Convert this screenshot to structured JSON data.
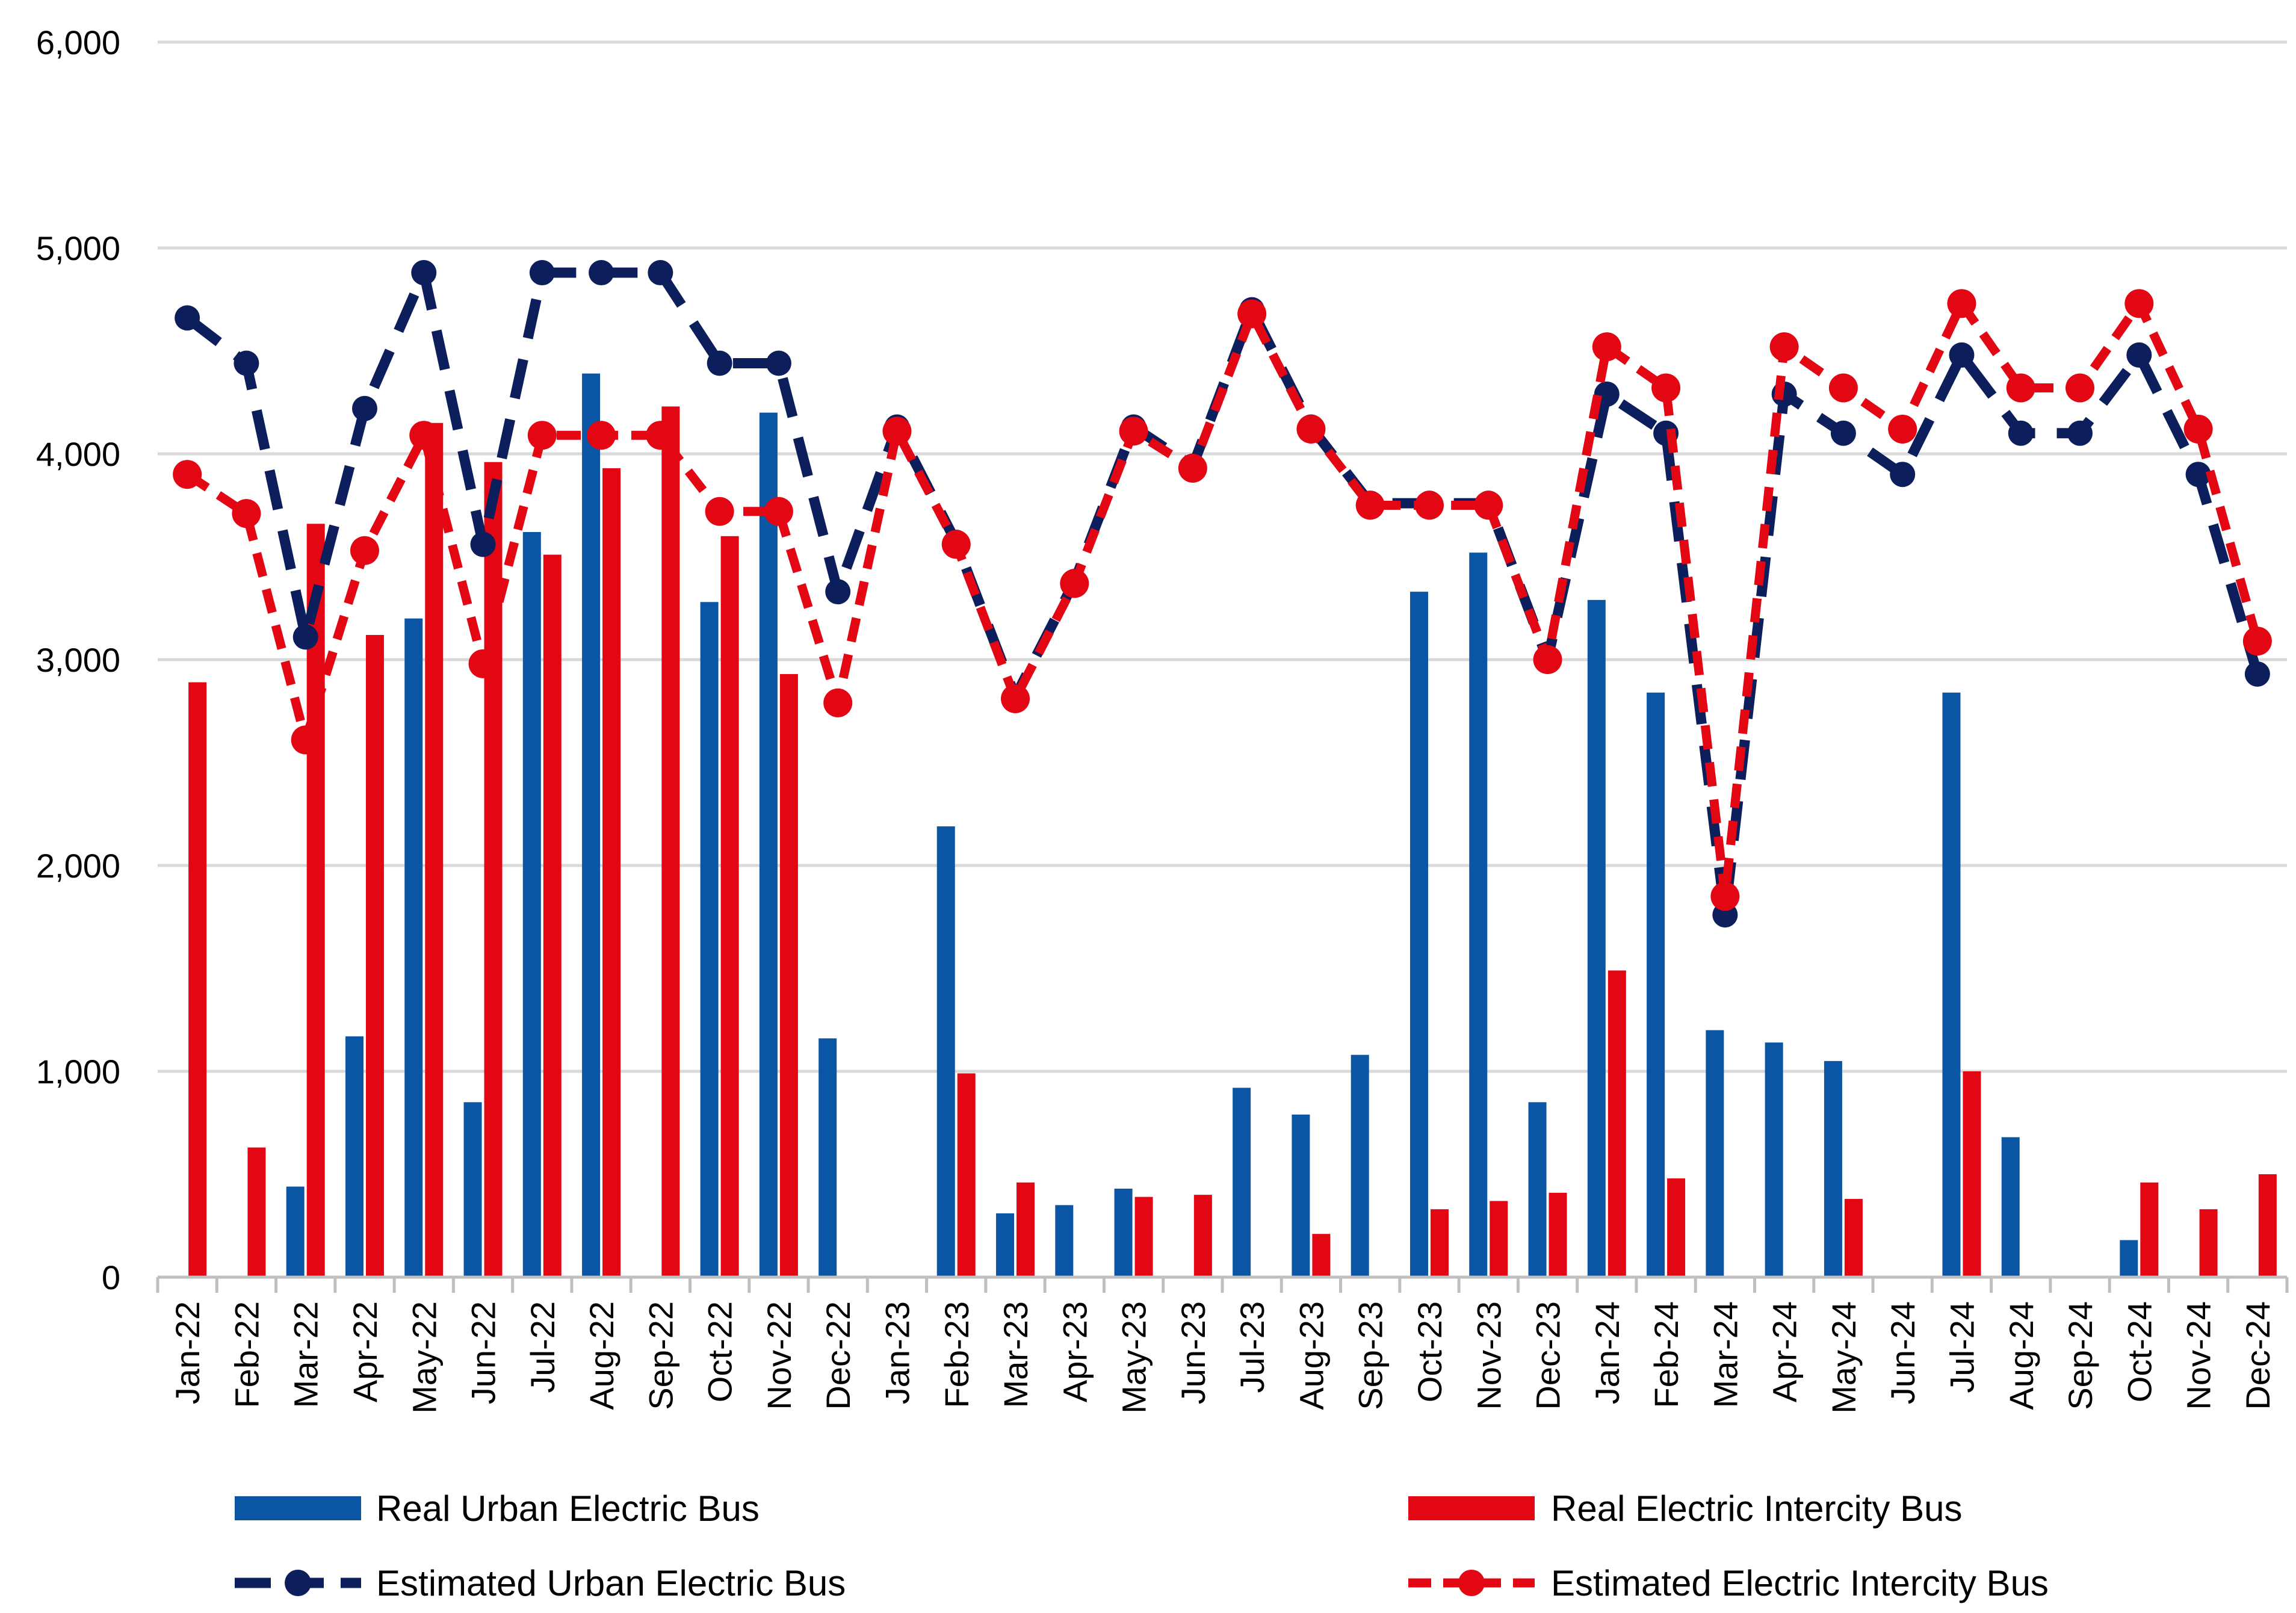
{
  "chart_data": {
    "type": "bar",
    "title": "",
    "xlabel": "",
    "ylabel": "",
    "ylim": [
      0,
      6000
    ],
    "y_ticks": [
      0,
      1000,
      2000,
      3000,
      4000,
      5000,
      6000
    ],
    "y_tick_labels": [
      "0",
      "1,000",
      "2,000",
      "3,000",
      "4,000",
      "5,000",
      "6,000"
    ],
    "grid": true,
    "legend_position": "bottom",
    "categories": [
      "Jan-22",
      "Feb-22",
      "Mar-22",
      "Apr-22",
      "May-22",
      "Jun-22",
      "Jul-22",
      "Aug-22",
      "Sep-22",
      "Oct-22",
      "Nov-22",
      "Dec-22",
      "Jan-23",
      "Feb-23",
      "Mar-23",
      "Apr-23",
      "May-23",
      "Jun-23",
      "Jul-23",
      "Aug-23",
      "Sep-23",
      "Oct-23",
      "Nov-23",
      "Dec-23",
      "Jan-24",
      "Feb-24",
      "Mar-24",
      "Apr-24",
      "May-24",
      "Jun-24",
      "Jul-24",
      "Aug-24",
      "Sep-24",
      "Oct-24",
      "Nov-24",
      "Dec-24"
    ],
    "series": [
      {
        "name": "Real Urban Electric Bus",
        "kind": "bar",
        "color": "#0B56A4",
        "values": [
          0,
          0,
          440,
          1170,
          3200,
          850,
          3620,
          4390,
          0,
          3280,
          4200,
          1160,
          0,
          2190,
          310,
          350,
          430,
          0,
          920,
          790,
          1080,
          3330,
          3520,
          850,
          3290,
          2840,
          1200,
          1140,
          1050,
          0,
          2840,
          680,
          0,
          180,
          0,
          0
        ]
      },
      {
        "name": "Real Electric Intercity Bus",
        "kind": "bar",
        "color": "#E30613",
        "values": [
          2890,
          630,
          3660,
          3120,
          4150,
          3960,
          3510,
          3930,
          4230,
          3600,
          2930,
          0,
          0,
          990,
          460,
          0,
          390,
          400,
          0,
          210,
          0,
          330,
          370,
          410,
          1490,
          480,
          0,
          0,
          380,
          0,
          1000,
          0,
          0,
          460,
          330,
          500
        ]
      },
      {
        "name": "Estimated Urban Electric Bus",
        "kind": "line",
        "color": "#0C1F5C",
        "values": [
          4660,
          4440,
          3110,
          4220,
          4880,
          3560,
          4880,
          4880,
          4880,
          4440,
          4440,
          3330,
          4130,
          3570,
          2820,
          3380,
          4130,
          3940,
          4700,
          4130,
          3760,
          3760,
          3760,
          3000,
          4290,
          4100,
          1760,
          4290,
          4100,
          3900,
          4480,
          4100,
          4100,
          4480,
          3900,
          2930
        ]
      },
      {
        "name": "Estimated Electric Intercity Bus",
        "kind": "line",
        "color": "#E30613",
        "values": [
          3900,
          3710,
          2610,
          3530,
          4090,
          2980,
          4090,
          4090,
          4090,
          3720,
          3720,
          2790,
          4110,
          3560,
          2810,
          3370,
          4110,
          3930,
          4680,
          4120,
          3750,
          3750,
          3750,
          3000,
          4520,
          4320,
          1850,
          4520,
          4320,
          4120,
          4730,
          4320,
          4320,
          4730,
          4120,
          3090
        ]
      }
    ]
  }
}
